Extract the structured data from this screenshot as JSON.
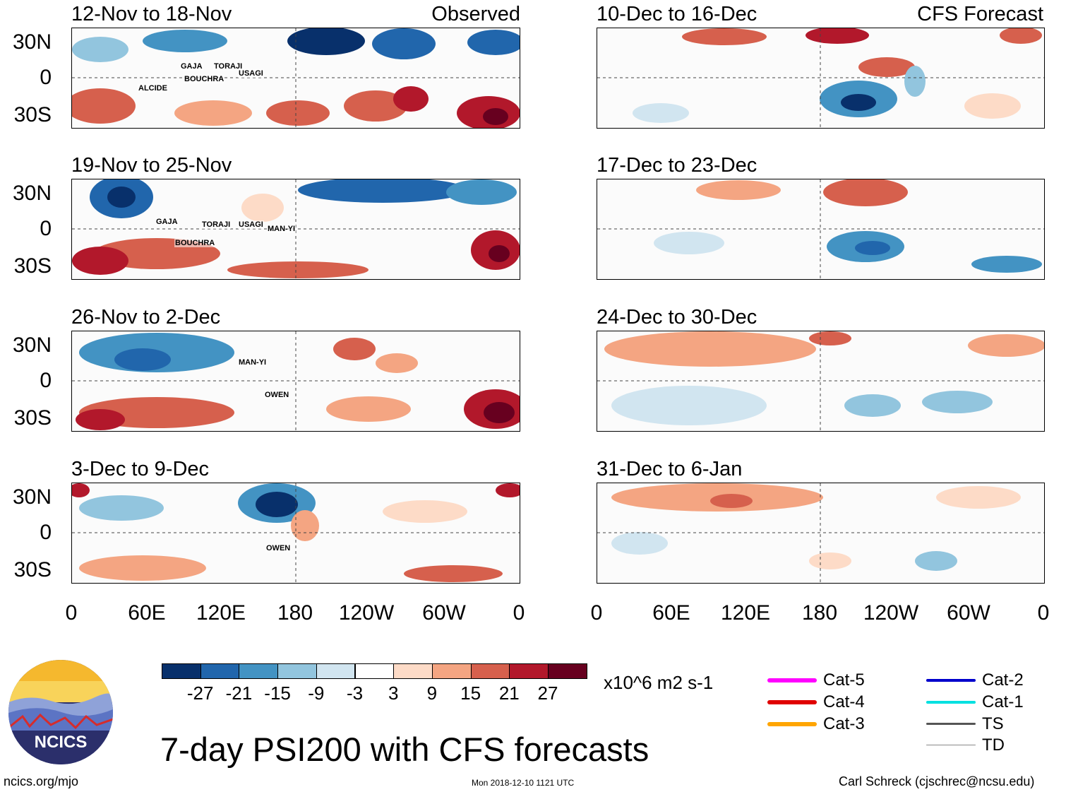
{
  "headers": {
    "left_tag": "Observed",
    "right_tag": "CFS Forecast"
  },
  "observed_panels": [
    {
      "title": "12-Nov to 18-Nov",
      "storms": [
        "GAJA",
        "TORAJI",
        "USAGI",
        "BOUCHRA",
        "ALCIDE"
      ]
    },
    {
      "title": "19-Nov to 25-Nov",
      "storms": [
        "GAJA",
        "TORAJI",
        "USAGI",
        "MAN-YI",
        "BOUCHRA"
      ]
    },
    {
      "title": "26-Nov to 2-Dec",
      "storms": [
        "MAN-YI",
        "OWEN"
      ]
    },
    {
      "title": "3-Dec to 9-Dec",
      "storms": [
        "OWEN"
      ]
    }
  ],
  "forecast_panels": [
    {
      "title": "10-Dec to 16-Dec"
    },
    {
      "title": "17-Dec to 23-Dec"
    },
    {
      "title": "24-Dec to 30-Dec"
    },
    {
      "title": "31-Dec to 6-Jan"
    }
  ],
  "lat_labels": [
    "30N",
    "0",
    "30S"
  ],
  "lon_labels": [
    "0",
    "60E",
    "120E",
    "180",
    "120W",
    "60W",
    "0"
  ],
  "colorbar": {
    "colors": [
      "#08306b",
      "#2166ac",
      "#4393c3",
      "#92c5de",
      "#d1e5f0",
      "#ffffff",
      "#fddbc7",
      "#f4a582",
      "#d6604d",
      "#b2182b",
      "#67001f"
    ],
    "labels": [
      "-27",
      "-21",
      "-15",
      "-9",
      "-3",
      "3",
      "9",
      "15",
      "21",
      "27"
    ],
    "units": "x10^6 m2 s-1"
  },
  "title": "7-day PSI200 with CFS forecasts",
  "legend": [
    {
      "label": "Cat-5",
      "color": "#ff00ff"
    },
    {
      "label": "Cat-4",
      "color": "#e00000"
    },
    {
      "label": "Cat-3",
      "color": "#ffa500"
    },
    {
      "label": "Cat-2",
      "color": "#0000cc"
    },
    {
      "label": "Cat-1",
      "color": "#00e0e0"
    },
    {
      "label": "TS",
      "color": "#555555"
    },
    {
      "label": "TD",
      "color": "#888888"
    }
  ],
  "logo": {
    "text": "NCICS"
  },
  "footer": {
    "url": "ncics.org/mjo",
    "timestamp": "Mon 2018-12-10 1121 UTC",
    "credit": "Carl Schreck (cjschrec@ncsu.edu)"
  }
}
